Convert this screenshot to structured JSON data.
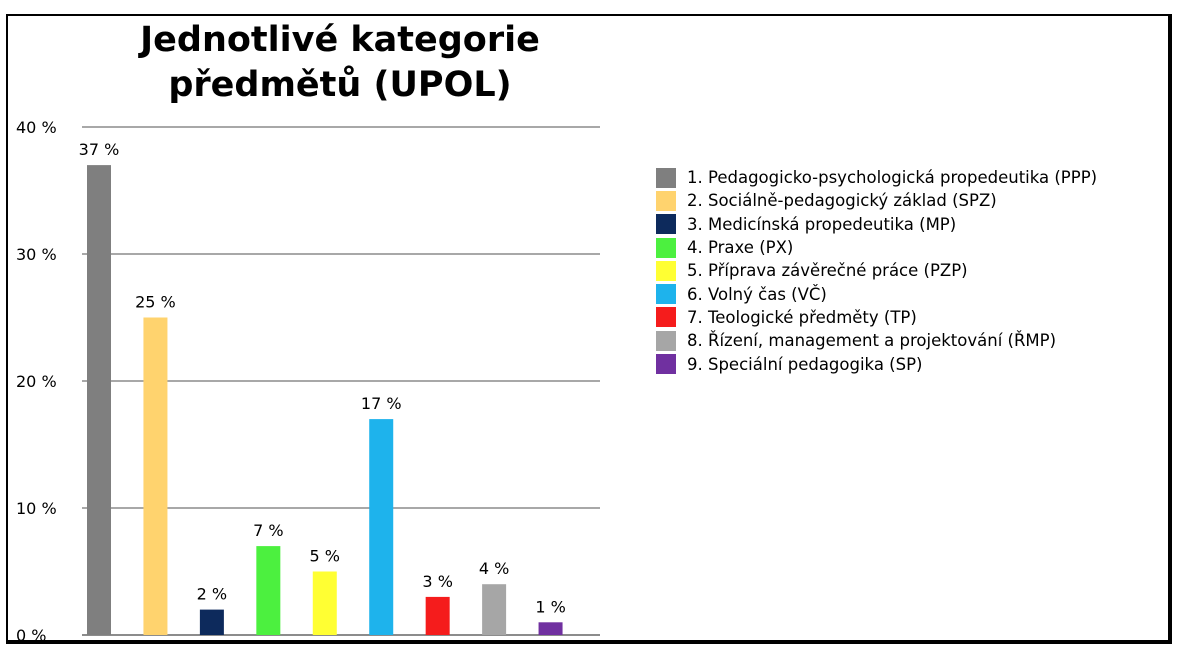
{
  "chart_data": {
    "type": "bar",
    "title": "Jednotlivé kategorie předmětů (UPOL)",
    "title_lines": [
      "Jednotlivé kategorie",
      "předmětů (UPOL)"
    ],
    "ylim": [
      0,
      40
    ],
    "yticks": [
      0,
      10,
      20,
      30,
      40
    ],
    "ytick_labels": [
      "0 %",
      "10 %",
      "20 %",
      "30 %",
      "40 %"
    ],
    "grid": true,
    "legend_position": "right",
    "categories": [
      "1. Pedagogicko-psychologická propedeutika (PPP)",
      "2. Sociálně-pedagogický základ (SPZ)",
      "3. Medicínská propedeutika (MP)",
      "4. Praxe (PX)",
      "5. Příprava závěrečné práce (PZP)",
      "6. Volný čas (VČ)",
      "7. Teologické předměty (TP)",
      "8. Řízení, management a projektování (ŘMP)",
      "9. Speciální pedagogika (SP)"
    ],
    "values": [
      37,
      25,
      2,
      7,
      5,
      17,
      3,
      4,
      1
    ],
    "data_labels": [
      "37 %",
      "25 %",
      "2 %",
      "7 %",
      "5 %",
      "17 %",
      "3 %",
      "4 %",
      "1 %"
    ],
    "colors": [
      "#7f7f7f",
      "#ffd36e",
      "#0d2a5c",
      "#4cf03f",
      "#ffff33",
      "#1eb3ec",
      "#f51c1c",
      "#a6a6a6",
      "#7030a0"
    ]
  }
}
